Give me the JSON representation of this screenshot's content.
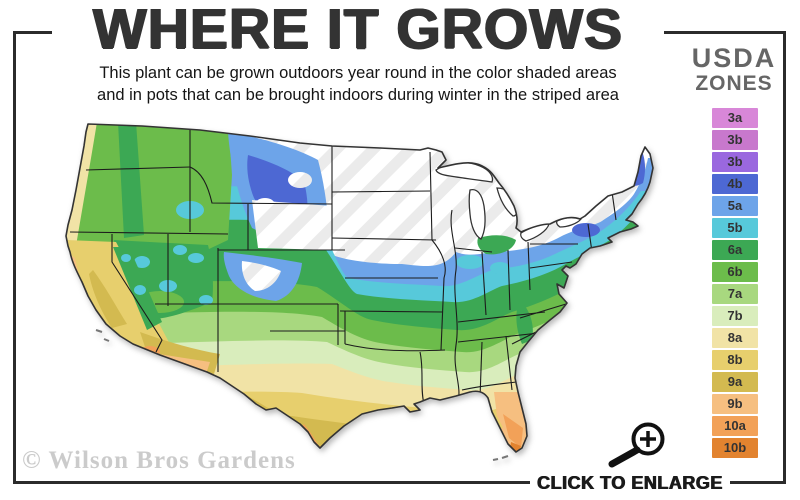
{
  "title": "WHERE IT GROWS",
  "subtitle": {
    "line1": "This plant can be grown outdoors year round in the color shaded areas",
    "line2": "and in pots that can be brought indoors during winter in the striped area"
  },
  "legend": {
    "title_line1": "USDA",
    "title_line2": "ZONES",
    "zones": [
      {
        "label": "3a",
        "color": "#d887d8"
      },
      {
        "label": "3b",
        "color": "#c878cd"
      },
      {
        "label": "3b",
        "color": "#9a68df"
      },
      {
        "label": "4b",
        "color": "#4d68d3"
      },
      {
        "label": "5a",
        "color": "#6da4e9"
      },
      {
        "label": "5b",
        "color": "#57c9da"
      },
      {
        "label": "6a",
        "color": "#3ca854"
      },
      {
        "label": "6b",
        "color": "#6cbc4b"
      },
      {
        "label": "7a",
        "color": "#a8d87f"
      },
      {
        "label": "7b",
        "color": "#d9edbc"
      },
      {
        "label": "8a",
        "color": "#f1e3a6"
      },
      {
        "label": "8b",
        "color": "#e7cf6d"
      },
      {
        "label": "9a",
        "color": "#d3ba50"
      },
      {
        "label": "9b",
        "color": "#f6bf80"
      },
      {
        "label": "10a",
        "color": "#f2a158"
      },
      {
        "label": "10b",
        "color": "#e2832f"
      }
    ]
  },
  "map": {
    "stripe_color": "#ebebeb",
    "outline_color": "#333333",
    "state_line_color": "#1c1c1c",
    "frame_color": "#2b2b2b"
  },
  "watermark": "© Wilson Bros Gardens",
  "enlarge": {
    "label": "CLICK TO ENLARGE",
    "icon": "magnifier-plus-icon"
  }
}
